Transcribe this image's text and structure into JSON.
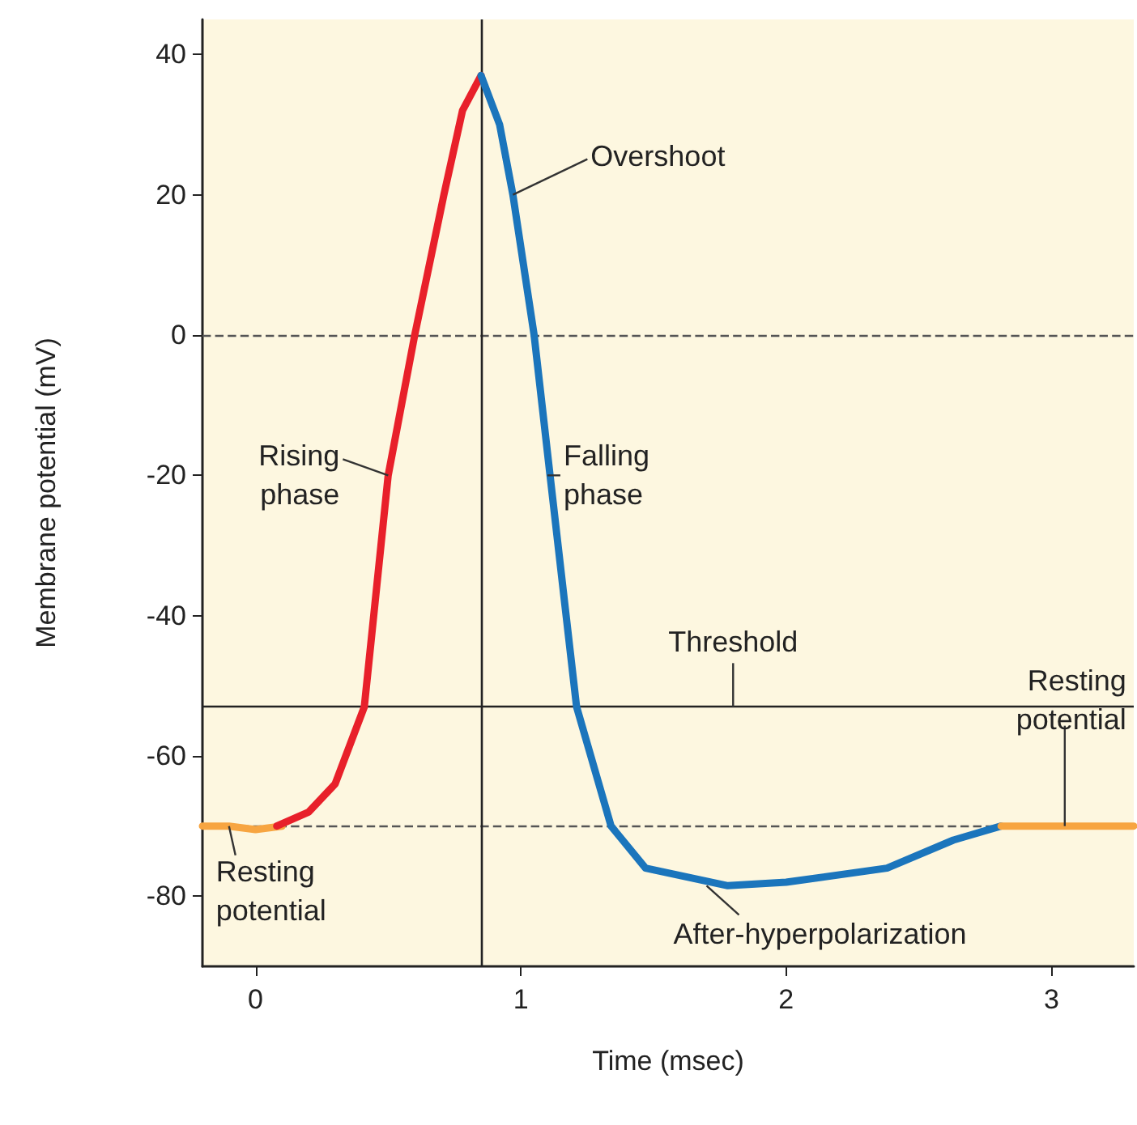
{
  "chart_data": {
    "type": "line",
    "xlabel": "Time (msec)",
    "ylabel": "Membrane potential (mV)",
    "xlim": [
      -0.2,
      3.31
    ],
    "xticks": [
      0,
      1,
      2,
      3
    ],
    "ylim": [
      -90,
      45
    ],
    "yticks": [
      40,
      20,
      0,
      -20,
      -40,
      -60,
      -80
    ],
    "marker": "none",
    "line_style": "solid",
    "series": [
      {
        "color": "#f7a541",
        "x": [
          -0.2,
          -0.1,
          0,
          0.1
        ],
        "values": [
          -70,
          -70,
          -70.5,
          -70
        ]
      },
      {
        "color": "#e8202a",
        "x": [
          0.08,
          0.2,
          0.3,
          0.41,
          0.5,
          0.6,
          0.71,
          0.78,
          0.85
        ],
        "values": [
          -70,
          -68,
          -64,
          -53,
          -20,
          0,
          20,
          32,
          37
        ]
      },
      {
        "color": "#1b75bc",
        "x": [
          0.85,
          0.92,
          0.97,
          1.05,
          1.11,
          1.21,
          1.34,
          1.47,
          1.78,
          2.0,
          2.38,
          2.63,
          2.81
        ],
        "values": [
          37,
          30,
          20,
          0,
          -20,
          -53,
          -70,
          -76,
          -78.5,
          -78,
          -76,
          -72,
          -70
        ]
      },
      {
        "color": "#f7a541",
        "x": [
          2.81,
          3.0,
          3.31
        ],
        "values": [
          -70,
          -70,
          -70
        ]
      }
    ],
    "ref_lines": [
      {
        "axis": "y",
        "value": 0,
        "line_style": "dashed",
        "color": "#555555"
      },
      {
        "axis": "y",
        "value": -53,
        "line_style": "solid",
        "color": "#222222"
      },
      {
        "axis": "y",
        "value": -70,
        "line_style": "dashed",
        "color": "#555555"
      },
      {
        "axis": "x",
        "value": 0.85,
        "line_style": "solid",
        "color": "#222222"
      }
    ],
    "annotations": [
      {
        "text": "Overshoot",
        "x": 0.97,
        "y": 20
      },
      {
        "text": "Rising\nphase",
        "x": 0.5,
        "y": -20
      },
      {
        "text": "Falling\nphase",
        "x": 1.1,
        "y": -20
      },
      {
        "text": "Threshold",
        "x": 1.8,
        "y": -53
      },
      {
        "text": "Resting\npotential",
        "x": 3.05,
        "y": -70
      },
      {
        "text": "Resting\npotential",
        "x": -0.1,
        "y": -70
      },
      {
        "text": "After-hyperpolarization",
        "x": 1.7,
        "y": -78.5
      }
    ]
  }
}
